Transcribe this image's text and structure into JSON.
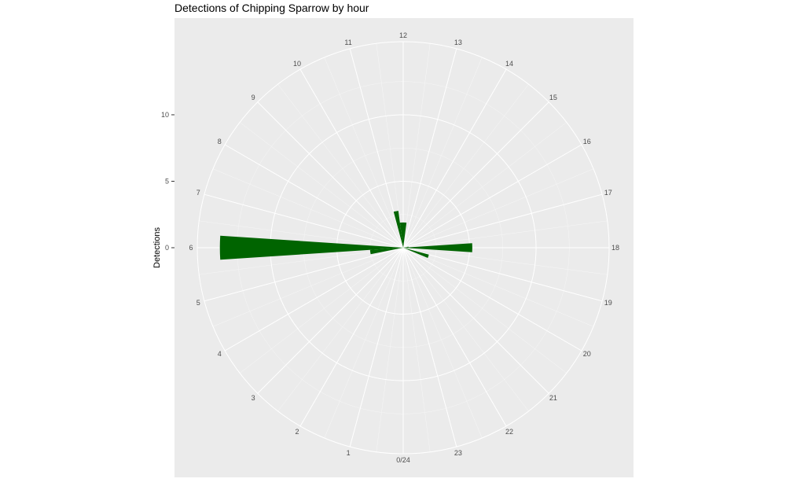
{
  "chart_data": {
    "type": "bar",
    "coord": "polar",
    "title": "Detections of Chipping Sparrow by hour",
    "xlabel": "",
    "ylabel": "Detections",
    "x_tick_labels": [
      "0/24",
      "1",
      "2",
      "3",
      "4",
      "5",
      "6",
      "7",
      "8",
      "9",
      "10",
      "11",
      "12",
      "13",
      "14",
      "15",
      "16",
      "17",
      "18",
      "19",
      "20",
      "21",
      "22",
      "23"
    ],
    "y_tick_labels": [
      "0",
      "5",
      "10"
    ],
    "y_ticks": [
      0,
      5,
      10
    ],
    "ylim": [
      0,
      15.5
    ],
    "bar_width_hours": 0.5,
    "grid": true,
    "series": [
      {
        "color": "#006400",
        "points": [
          {
            "hour": 5.5,
            "value": 2.5
          },
          {
            "hour": 6.0,
            "value": 13.8
          },
          {
            "hour": 11.25,
            "value": 2.8
          },
          {
            "hour": 11.75,
            "value": 1.9
          },
          {
            "hour": 12.25,
            "value": 1.9
          },
          {
            "hour": 17.5,
            "value": 0.4
          },
          {
            "hour": 18.0,
            "value": 5.2
          },
          {
            "hour": 19.25,
            "value": 2.0
          }
        ]
      }
    ]
  }
}
